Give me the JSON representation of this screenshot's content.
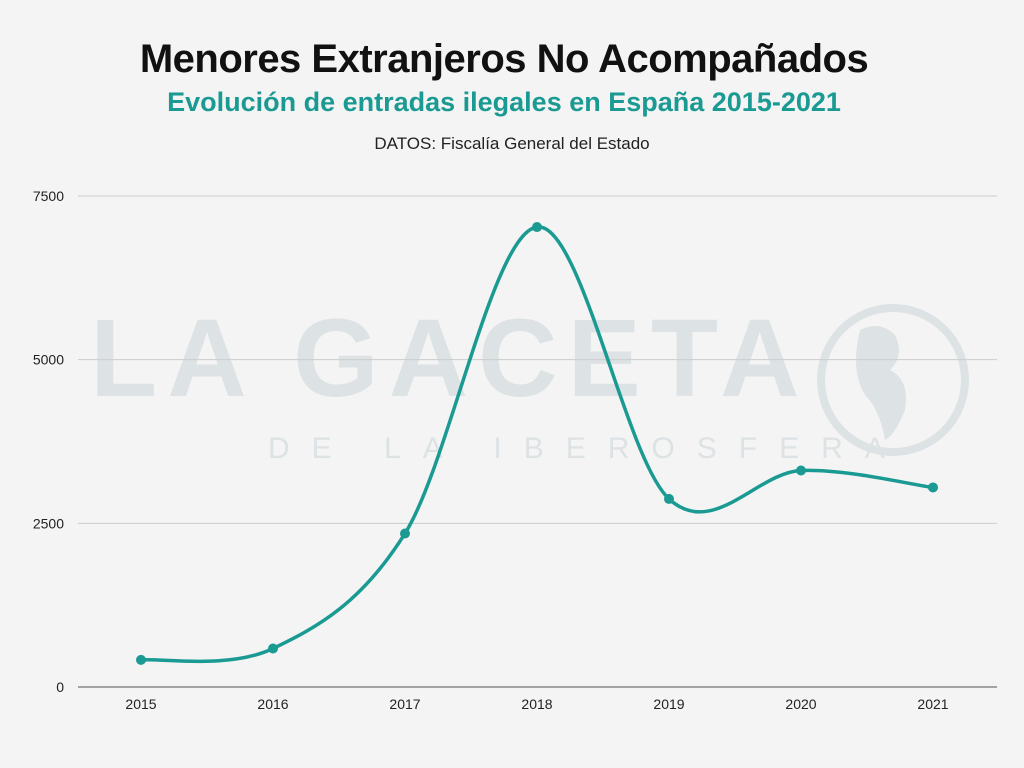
{
  "title": "Menores Extranjeros No Acompañados",
  "subtitle": "Evolución de entradas ilegales en España 2015-2021",
  "source": "DATOS: Fiscalía General del Estado",
  "watermark": {
    "line1": "LA GACETA",
    "line2": "DE LA IBEROSFERA"
  },
  "colors": {
    "line": "#1a9a92",
    "title": "#111111",
    "subtitle": "#1a9a92",
    "grid": "#cccccc",
    "background": "#f4f4f4"
  },
  "chart_data": {
    "type": "line",
    "smooth": true,
    "categories": [
      "2015",
      "2016",
      "2017",
      "2018",
      "2019",
      "2020",
      "2021"
    ],
    "values": [
      414,
      588,
      2345,
      7026,
      2873,
      3307,
      3048
    ],
    "ylim": [
      0,
      7500
    ],
    "yticks": [
      "0",
      "2500",
      "5000",
      "7500"
    ],
    "grid": true,
    "xlabel": "",
    "ylabel": ""
  }
}
